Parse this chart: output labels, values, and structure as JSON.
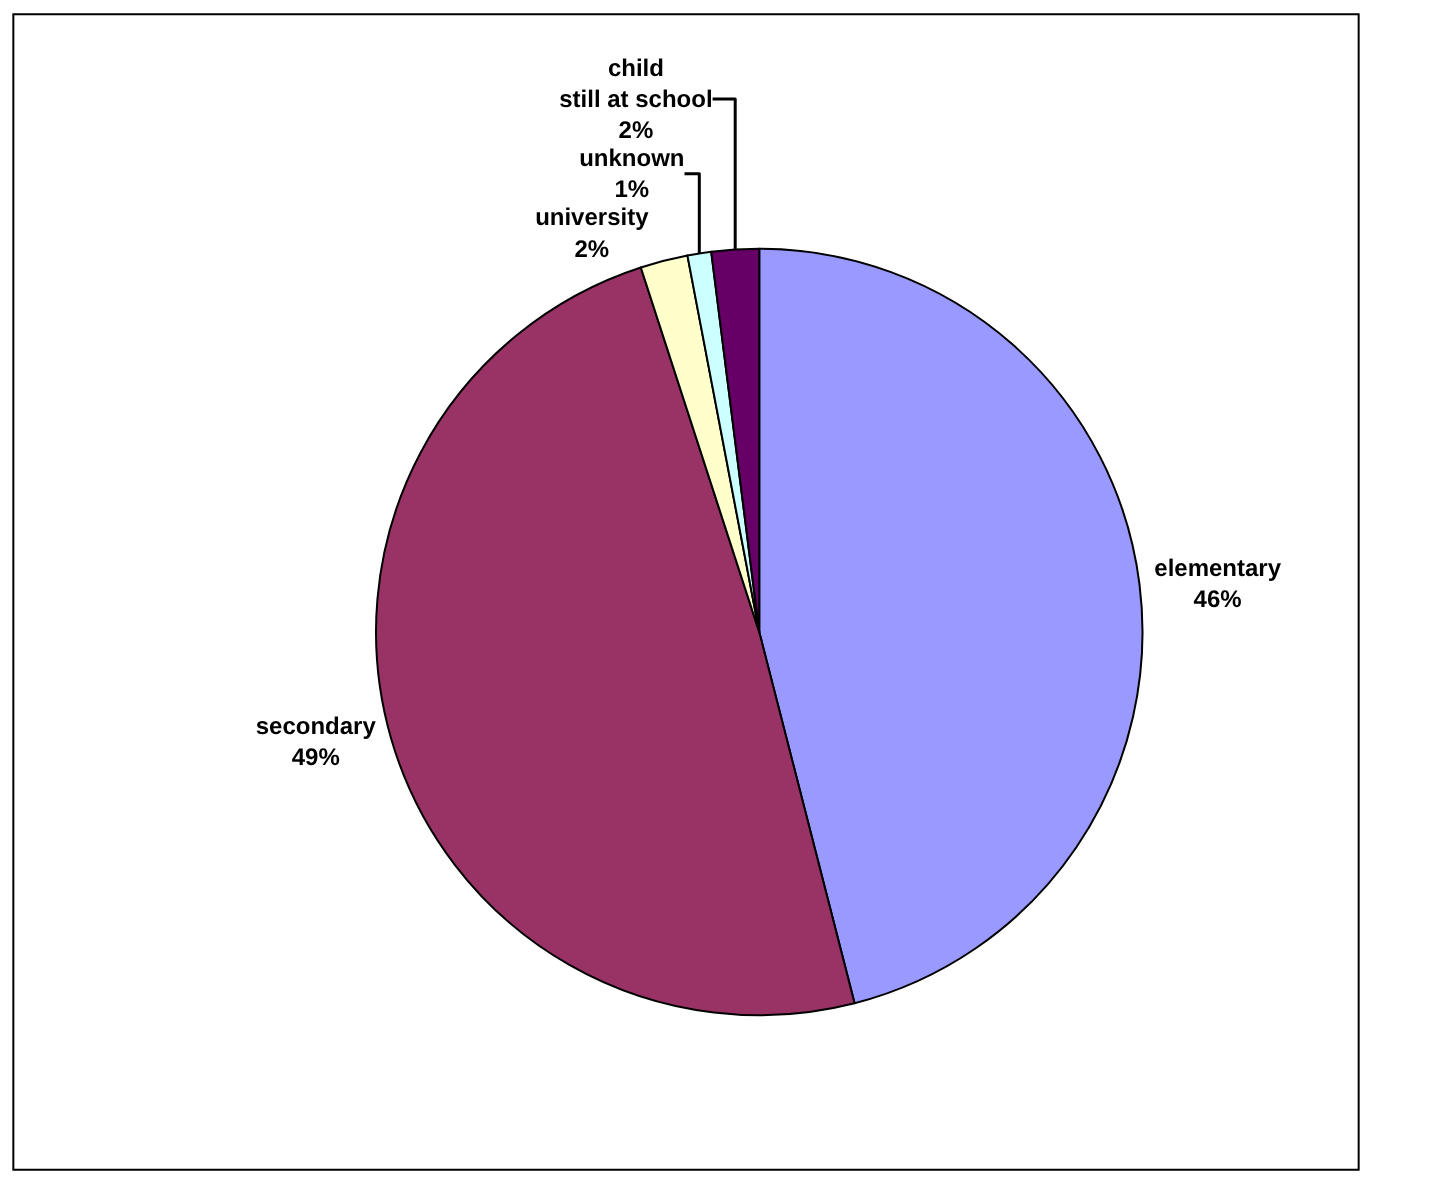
{
  "chart_data": {
    "type": "pie",
    "categories": [
      "elementary",
      "secondary",
      "university",
      "unknown",
      "child still at school"
    ],
    "values": [
      46,
      49,
      2,
      1,
      2
    ],
    "colors": [
      "#9999ff",
      "#993366",
      "#ffffcc",
      "#ccffff",
      "#660066"
    ],
    "value_labels": [
      "46%",
      "49%",
      "2%",
      "1%",
      "2%"
    ],
    "legend": false
  }
}
